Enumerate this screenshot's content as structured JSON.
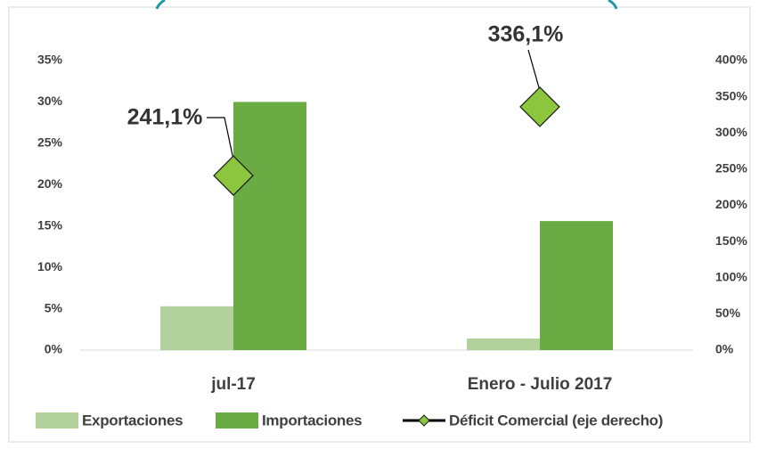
{
  "chart_data": {
    "type": "bar",
    "categories": [
      "jul-17",
      "Enero - Julio 2017"
    ],
    "series": [
      {
        "name": "Exportaciones",
        "color": "#b1d09c",
        "values": [
          5.3,
          1.4
        ]
      },
      {
        "name": "Importaciones",
        "color": "#6aab44",
        "values": [
          30.0,
          15.6
        ]
      },
      {
        "name": "Déficit Comercial (eje derecho)",
        "color": "#8cc63f",
        "axis": "y2",
        "values": [
          241.1,
          336.1
        ],
        "value_labels": [
          "241,1%",
          "336,1%"
        ]
      }
    ],
    "ylim": [
      0,
      35
    ],
    "yticks": [
      {
        "value": 0,
        "label": "0%"
      },
      {
        "value": 5,
        "label": "5%"
      },
      {
        "value": 10,
        "label": "10%"
      },
      {
        "value": 15,
        "label": "15%"
      },
      {
        "value": 20,
        "label": "20%"
      },
      {
        "value": 25,
        "label": "25%"
      },
      {
        "value": 30,
        "label": "30%"
      },
      {
        "value": 35,
        "label": "35%"
      }
    ],
    "y2lim": [
      0,
      400
    ],
    "y2ticks": [
      {
        "value": 0,
        "label": "0%"
      },
      {
        "value": 50,
        "label": "50%"
      },
      {
        "value": 100,
        "label": "100%"
      },
      {
        "value": 150,
        "label": "150%"
      },
      {
        "value": 200,
        "label": "200%"
      },
      {
        "value": 250,
        "label": "250%"
      },
      {
        "value": 300,
        "label": "300%"
      },
      {
        "value": 350,
        "label": "350%"
      },
      {
        "value": 400,
        "label": "400%"
      }
    ],
    "legend": "bottom"
  }
}
